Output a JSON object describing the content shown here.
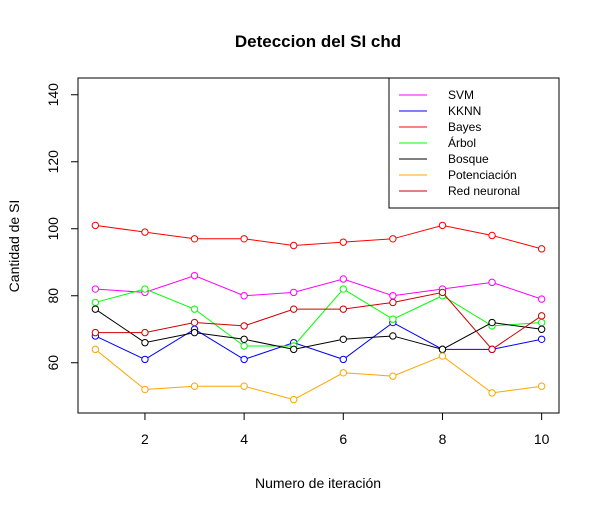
{
  "chart_data": {
    "type": "line",
    "title": "Deteccion del SI chd",
    "xlabel": "Numero de iteración",
    "ylabel": "Cantidad de SI",
    "xlim": [
      0.65,
      10.35
    ],
    "ylim": [
      45,
      145
    ],
    "x_ticks": [
      2,
      4,
      6,
      8,
      10
    ],
    "y_ticks": [
      60,
      80,
      100,
      120,
      140
    ],
    "x": [
      1,
      2,
      3,
      4,
      5,
      6,
      7,
      8,
      9,
      10
    ],
    "grid": false,
    "legend_position": "top-right",
    "series": [
      {
        "name": "SVM",
        "color": "#ff00ff",
        "values": [
          82,
          81,
          86,
          80,
          81,
          85,
          80,
          82,
          84,
          79
        ]
      },
      {
        "name": "KKNN",
        "color": "#0000ff",
        "values": [
          68,
          61,
          70,
          61,
          66,
          61,
          72,
          64,
          64,
          67
        ]
      },
      {
        "name": "Bayes",
        "color": "#ff0000",
        "values": [
          101,
          99,
          97,
          97,
          95,
          96,
          97,
          101,
          98,
          94
        ]
      },
      {
        "name": "Árbol",
        "color": "#00ff00",
        "values": [
          78,
          82,
          76,
          65,
          65,
          82,
          73,
          80,
          71,
          72
        ]
      },
      {
        "name": "Bosque",
        "color": "#000000",
        "values": [
          76,
          66,
          69,
          67,
          64,
          67,
          68,
          64,
          72,
          70
        ]
      },
      {
        "name": "Potenciación",
        "color": "#ffa500",
        "values": [
          64,
          52,
          53,
          53,
          49,
          57,
          56,
          62,
          51,
          53
        ]
      },
      {
        "name": "Red neuronal",
        "color": "#cd0000",
        "values": [
          69,
          69,
          72,
          71,
          76,
          76,
          78,
          81,
          64,
          74
        ]
      }
    ]
  }
}
